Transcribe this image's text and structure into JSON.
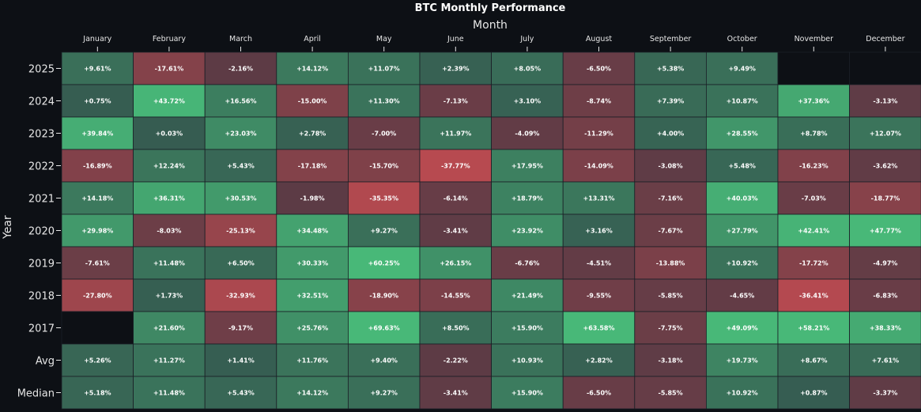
{
  "chart_data": {
    "type": "heatmap",
    "title": "BTC Monthly Performance",
    "xlabel": "Month",
    "ylabel": "Year",
    "columns": [
      "January",
      "February",
      "March",
      "April",
      "May",
      "June",
      "July",
      "August",
      "September",
      "October",
      "November",
      "December"
    ],
    "rows": [
      "2025",
      "2024",
      "2023",
      "2022",
      "2021",
      "2020",
      "2019",
      "2018",
      "2017",
      "Avg",
      "Median"
    ],
    "values": [
      [
        9.61,
        -17.61,
        -2.16,
        14.12,
        11.07,
        2.39,
        8.05,
        -6.5,
        5.38,
        9.49,
        null,
        null
      ],
      [
        0.75,
        43.72,
        16.56,
        -15.0,
        11.3,
        -7.13,
        3.1,
        -8.74,
        7.39,
        10.87,
        37.36,
        -3.13
      ],
      [
        39.84,
        0.03,
        23.03,
        2.78,
        -7.0,
        11.97,
        -4.09,
        -11.29,
        4.0,
        28.55,
        8.78,
        12.07
      ],
      [
        -16.89,
        12.24,
        5.43,
        -17.18,
        -15.7,
        -37.77,
        17.95,
        -14.09,
        -3.08,
        5.48,
        -16.23,
        -3.62
      ],
      [
        14.18,
        36.31,
        30.53,
        -1.98,
        -35.35,
        -6.14,
        18.79,
        13.31,
        -7.16,
        40.03,
        -7.03,
        -18.77
      ],
      [
        29.98,
        -8.03,
        -25.13,
        34.48,
        9.27,
        -3.41,
        23.92,
        3.16,
        -7.67,
        27.79,
        42.41,
        47.77
      ],
      [
        -7.61,
        11.48,
        6.5,
        30.33,
        60.25,
        26.15,
        -6.76,
        -4.51,
        -13.88,
        10.92,
        -17.72,
        -4.97
      ],
      [
        -27.8,
        1.73,
        -32.93,
        32.51,
        -18.9,
        -14.55,
        21.49,
        -9.55,
        -5.85,
        -4.65,
        -36.41,
        -6.83
      ],
      [
        null,
        21.6,
        -9.17,
        25.76,
        69.63,
        8.5,
        15.9,
        63.58,
        -7.75,
        49.09,
        58.21,
        38.33
      ],
      [
        5.26,
        11.27,
        1.41,
        11.76,
        9.4,
        -2.22,
        10.93,
        2.82,
        -3.18,
        19.73,
        8.67,
        7.61
      ],
      [
        5.18,
        11.48,
        5.43,
        14.12,
        9.27,
        -3.41,
        15.9,
        -6.5,
        -5.85,
        10.92,
        0.87,
        -3.37
      ]
    ],
    "value_format": "signed percent, 2 decimals",
    "colors": {
      "positive_strong": "#48b878",
      "neutral": "#2e3440",
      "negative_strong": "#b84a50",
      "empty": "#0d1015",
      "background": "#0d1015"
    }
  }
}
